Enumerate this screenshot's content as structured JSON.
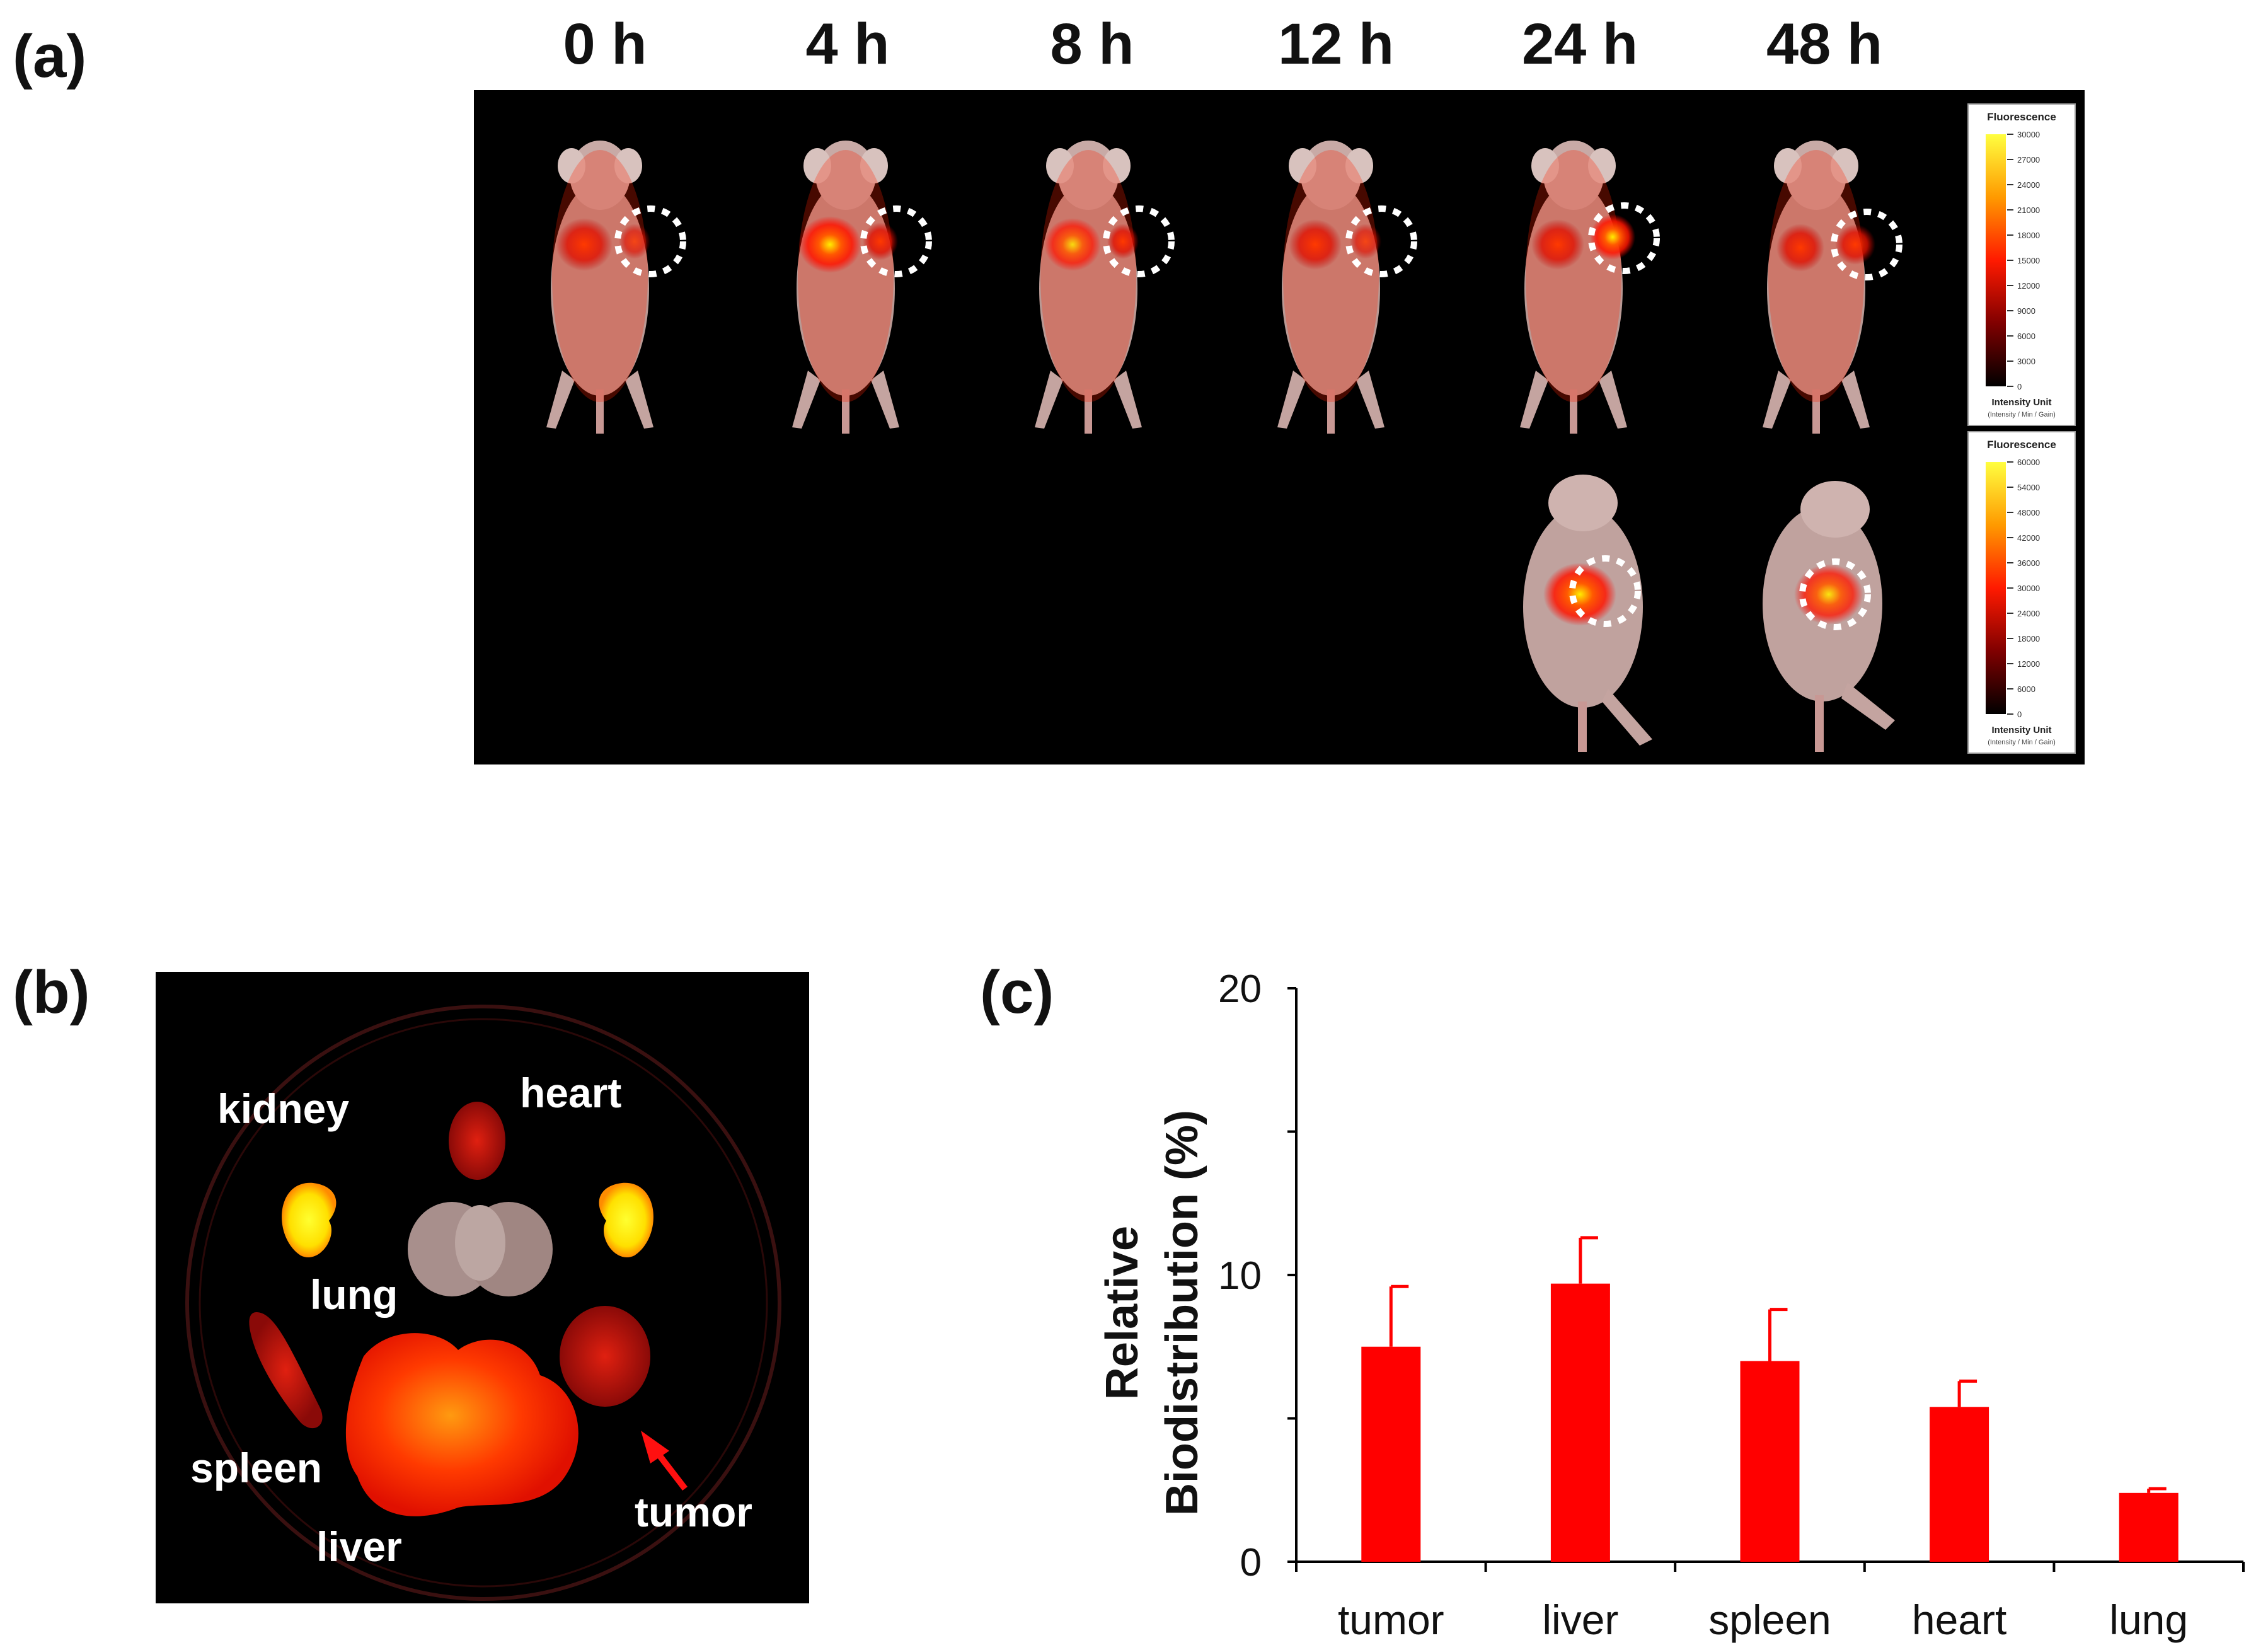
{
  "panel_labels": {
    "a": "(a)",
    "b": "(b)",
    "c": "(c)"
  },
  "panel_a": {
    "timepoints": [
      "0 h",
      "4 h",
      "8 h",
      "12 h",
      "24 h",
      "48 h"
    ],
    "scale_bars": [
      {
        "title": "Fluorescence",
        "ticks": [
          "30000",
          "27000",
          "24000",
          "21000",
          "18000",
          "15000",
          "12000",
          "9000",
          "6000",
          "3000",
          "0"
        ],
        "unit": "Intensity Unit",
        "unit_sub": "(Intensity / Min / Gain)"
      },
      {
        "title": "Fluorescence",
        "ticks": [
          "60000",
          "54000",
          "48000",
          "42000",
          "36000",
          "30000",
          "24000",
          "18000",
          "12000",
          "6000",
          "0"
        ],
        "unit": "Intensity Unit",
        "unit_sub": "(Intensity / Min / Gain)"
      }
    ]
  },
  "panel_b": {
    "organ_labels": {
      "kidney": "kidney",
      "heart": "heart",
      "lung": "lung",
      "spleen": "spleen",
      "liver": "liver",
      "tumor": "tumor"
    }
  },
  "colors": {
    "bar": "#ff0000",
    "mouse": "#c8a8a4",
    "signal": "#ff2000",
    "hot": "#ffee00"
  },
  "chart_data": {
    "type": "bar",
    "categories": [
      "tumor",
      "liver",
      "spleen",
      "heart",
      "lung"
    ],
    "values": [
      7.5,
      9.7,
      7.0,
      5.4,
      2.4
    ],
    "errors": [
      2.1,
      1.6,
      1.8,
      0.9,
      0.15
    ],
    "title": "",
    "xlabel": "",
    "ylabel_lines": [
      "Relative",
      "Biodistribution (%)"
    ],
    "ylim": [
      0,
      20
    ],
    "yticks": [
      0,
      10,
      20
    ],
    "grid": false
  }
}
